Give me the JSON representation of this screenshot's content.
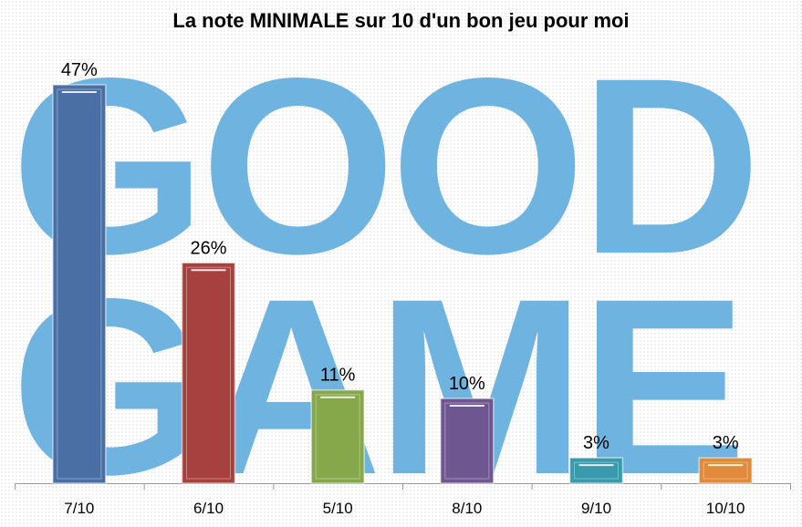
{
  "watermark": {
    "line1": "GOOD",
    "line2": "GAME"
  },
  "chart_data": {
    "type": "bar",
    "title": "La note MINIMALE sur 10 d'un bon jeu pour moi",
    "categories": [
      "7/10",
      "6/10",
      "5/10",
      "8/10",
      "9/10",
      "10/10"
    ],
    "values": [
      47,
      26,
      11,
      10,
      3,
      3
    ],
    "data_labels": [
      "47%",
      "26%",
      "11%",
      "10%",
      "3%",
      "3%"
    ],
    "colors": [
      "#4a6fa5",
      "#a74140",
      "#87a74b",
      "#6e5690",
      "#3a9aad",
      "#e08a3a"
    ],
    "ylim": [
      0,
      47
    ],
    "grid": false,
    "legend": "none"
  }
}
